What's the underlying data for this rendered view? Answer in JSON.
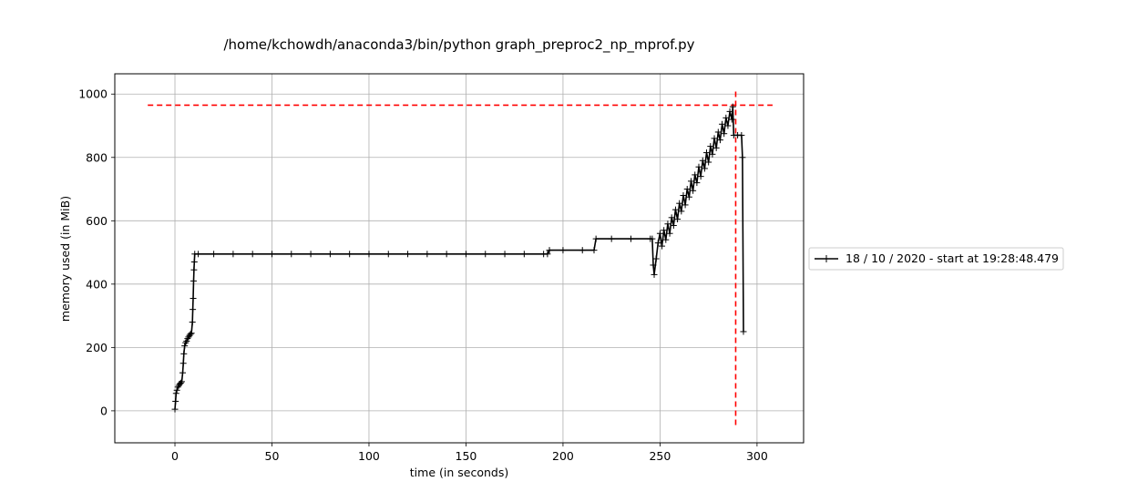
{
  "chart_data": {
    "type": "line",
    "title": "/home/kchowdh/anaconda3/bin/python graph_preproc2_np_mprof.py",
    "xlabel": "time (in seconds)",
    "ylabel": "memory used (in MiB)",
    "xlim": [
      -31,
      324
    ],
    "ylim": [
      -101,
      1064
    ],
    "xticks": [
      0,
      50,
      100,
      150,
      200,
      250,
      300
    ],
    "yticks": [
      0,
      200,
      400,
      600,
      800,
      1000
    ],
    "grid": true,
    "legend_position": "right-outside",
    "series": [
      {
        "name": "18 / 10 / 2020 - start at 19:28:48.479",
        "color": "#000000",
        "marker": "+",
        "points": [
          [
            0.0,
            5
          ],
          [
            0.3,
            30
          ],
          [
            0.6,
            55
          ],
          [
            1.0,
            65
          ],
          [
            1.5,
            75
          ],
          [
            2.0,
            80
          ],
          [
            2.5,
            85
          ],
          [
            3.0,
            88
          ],
          [
            3.5,
            92
          ],
          [
            4.0,
            120
          ],
          [
            4.3,
            150
          ],
          [
            4.6,
            180
          ],
          [
            5.0,
            205
          ],
          [
            5.5,
            215
          ],
          [
            6.0,
            220
          ],
          [
            6.5,
            228
          ],
          [
            7.0,
            233
          ],
          [
            7.5,
            238
          ],
          [
            8.0,
            242
          ],
          [
            8.5,
            245
          ],
          [
            9.0,
            280
          ],
          [
            9.2,
            320
          ],
          [
            9.4,
            355
          ],
          [
            9.6,
            410
          ],
          [
            9.8,
            445
          ],
          [
            10.0,
            470
          ],
          [
            10.2,
            495
          ],
          [
            12,
            495
          ],
          [
            20,
            495
          ],
          [
            30,
            495
          ],
          [
            40,
            495
          ],
          [
            50,
            495
          ],
          [
            60,
            495
          ],
          [
            70,
            495
          ],
          [
            80,
            495
          ],
          [
            90,
            495
          ],
          [
            100,
            495
          ],
          [
            110,
            495
          ],
          [
            120,
            495
          ],
          [
            130,
            495
          ],
          [
            140,
            495
          ],
          [
            150,
            495
          ],
          [
            160,
            495
          ],
          [
            170,
            495
          ],
          [
            180,
            495
          ],
          [
            190,
            495
          ],
          [
            192,
            495
          ],
          [
            193,
            507
          ],
          [
            200,
            507
          ],
          [
            210,
            507
          ],
          [
            216,
            507
          ],
          [
            217,
            543
          ],
          [
            225,
            543
          ],
          [
            235,
            543
          ],
          [
            245,
            543
          ],
          [
            246,
            543
          ],
          [
            246.5,
            460
          ],
          [
            247,
            430
          ],
          [
            248,
            480
          ],
          [
            249,
            530
          ],
          [
            250,
            560
          ],
          [
            251,
            520
          ],
          [
            252,
            570
          ],
          [
            253,
            540
          ],
          [
            254,
            590
          ],
          [
            255,
            560
          ],
          [
            256,
            610
          ],
          [
            257,
            585
          ],
          [
            258,
            635
          ],
          [
            259,
            605
          ],
          [
            260,
            655
          ],
          [
            261,
            630
          ],
          [
            262,
            680
          ],
          [
            263,
            650
          ],
          [
            264,
            700
          ],
          [
            265,
            675
          ],
          [
            266,
            725
          ],
          [
            267,
            695
          ],
          [
            268,
            745
          ],
          [
            269,
            720
          ],
          [
            270,
            770
          ],
          [
            271,
            740
          ],
          [
            272,
            790
          ],
          [
            273,
            765
          ],
          [
            274,
            815
          ],
          [
            275,
            785
          ],
          [
            276,
            835
          ],
          [
            277,
            810
          ],
          [
            278,
            860
          ],
          [
            279,
            830
          ],
          [
            280,
            880
          ],
          [
            281,
            855
          ],
          [
            282,
            905
          ],
          [
            283,
            875
          ],
          [
            284,
            925
          ],
          [
            285,
            900
          ],
          [
            286,
            945
          ],
          [
            287,
            920
          ],
          [
            287.5,
            960
          ],
          [
            288,
            870
          ],
          [
            290,
            870
          ],
          [
            292,
            870
          ],
          [
            292.5,
            800
          ],
          [
            293,
            250
          ]
        ]
      }
    ],
    "reference_lines": [
      {
        "orientation": "horizontal",
        "y": 965,
        "x_from": -14,
        "x_to": 308,
        "color": "#ff0000",
        "style": "dashed"
      },
      {
        "orientation": "vertical",
        "x": 289,
        "y_from": -45,
        "y_to": 1010,
        "color": "#ff0000",
        "style": "dashed"
      }
    ]
  }
}
